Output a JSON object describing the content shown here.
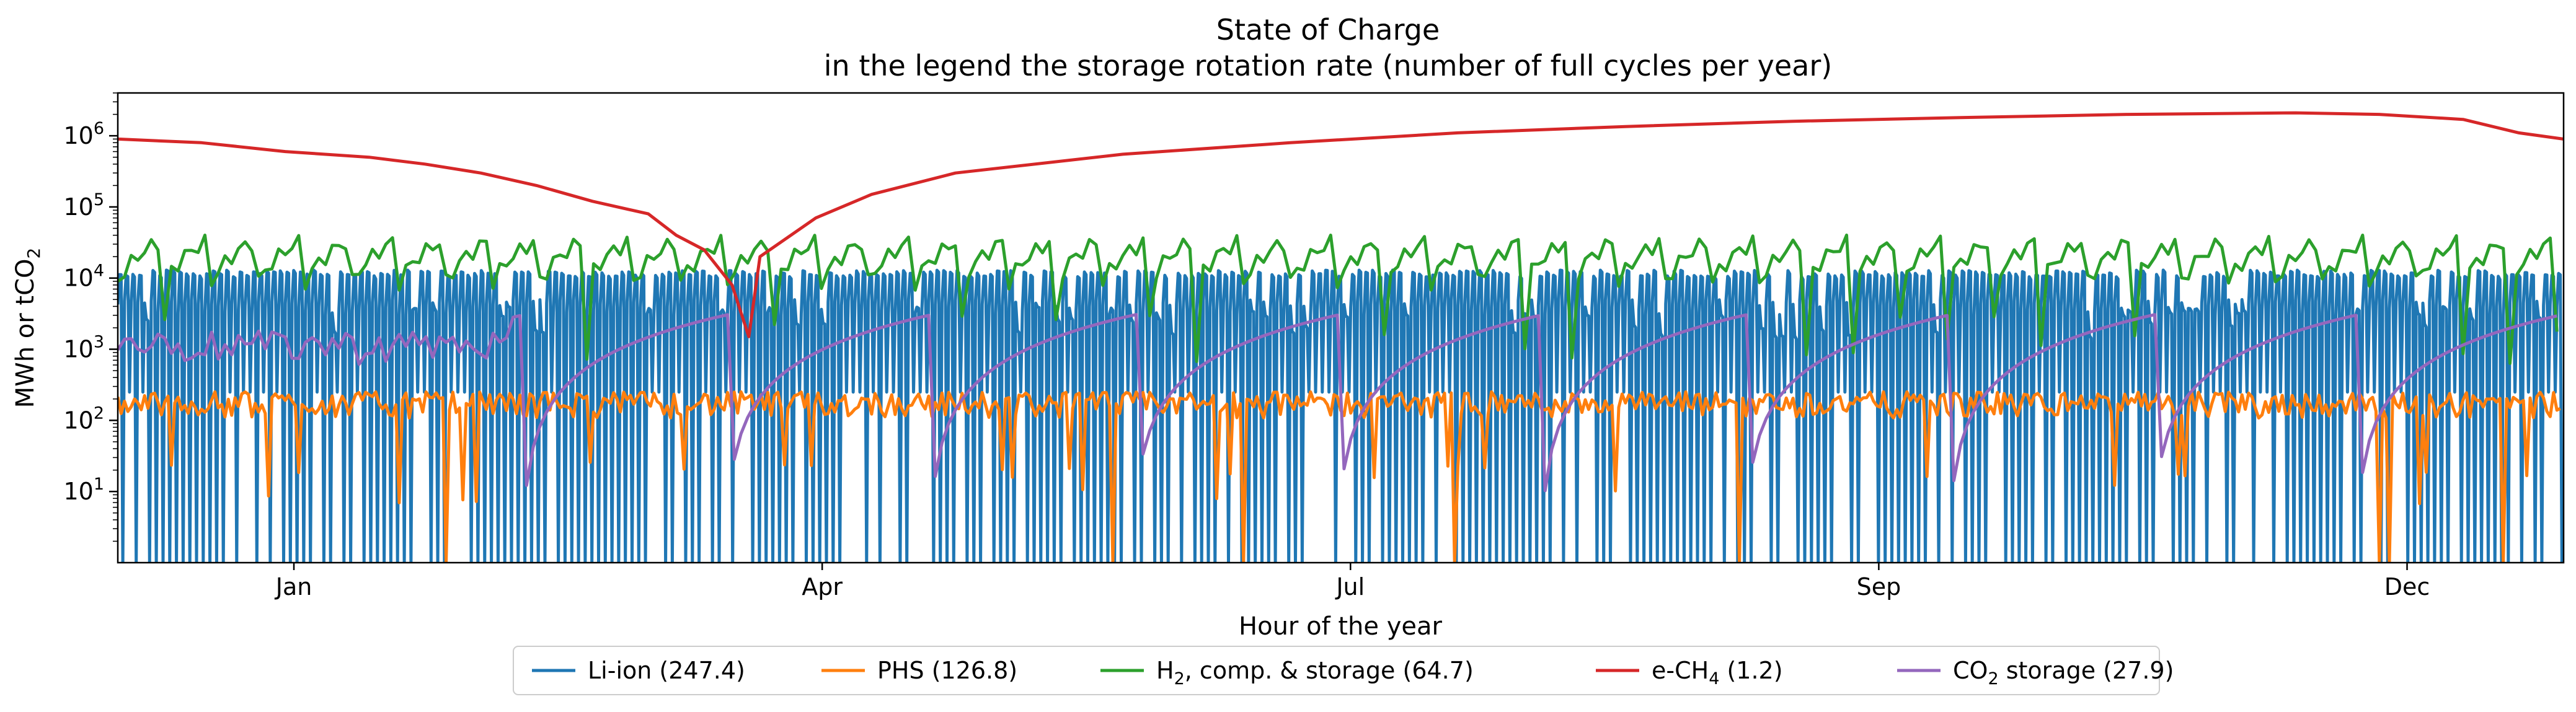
{
  "chart_data": {
    "type": "line",
    "title": "State of Charge",
    "subtitle": "in the legend the storage rotation rate (number of full cycles per year)",
    "xlabel": "Hour of the year",
    "ylabel_main": "MWh or tCO",
    "ylabel_sub": "2",
    "y_scale": "log",
    "ylim": [
      1,
      4000000
    ],
    "xlim": [
      0,
      8760
    ],
    "x_ticks": [
      {
        "label": "Jan",
        "value": 720
      },
      {
        "label": "Apr",
        "value": 2880
      },
      {
        "label": "Jul",
        "value": 5040
      },
      {
        "label": "Sep",
        "value": 7200
      },
      {
        "label": "Dec",
        "value": 9360
      }
    ],
    "y_ticks": [
      {
        "base": "10",
        "exp": "1",
        "value": 10
      },
      {
        "base": "10",
        "exp": "2",
        "value": 100
      },
      {
        "base": "10",
        "exp": "3",
        "value": 1000
      },
      {
        "base": "10",
        "exp": "4",
        "value": 10000
      },
      {
        "base": "10",
        "exp": "5",
        "value": 100000
      },
      {
        "base": "10",
        "exp": "6",
        "value": 1000000
      }
    ],
    "legend_position": "bottom-center",
    "series": [
      {
        "name": "Li-ion (247.4)",
        "color": "#1f77b4",
        "pattern": "daily-cycle",
        "high": 13000,
        "low": 1,
        "typical": 5000
      },
      {
        "name": "PHS (126.8)",
        "color": "#ff7f0e",
        "pattern": "noisy",
        "high": 300,
        "low": 20,
        "typical": 180
      },
      {
        "name": "H2, comp. & storage (64.7)",
        "color": "#2ca02c",
        "pattern": "weekly-sawtooth",
        "high": 45000,
        "low": 3000,
        "typical": 20000
      },
      {
        "name": "e-CH4 (1.2)",
        "color": "#d62728",
        "pattern": "seasonal",
        "points": [
          [
            0,
            900000
          ],
          [
            300,
            800000
          ],
          [
            600,
            600000
          ],
          [
            900,
            500000
          ],
          [
            1100,
            400000
          ],
          [
            1300,
            300000
          ],
          [
            1500,
            200000
          ],
          [
            1700,
            120000
          ],
          [
            1900,
            80000
          ],
          [
            2000,
            40000
          ],
          [
            2100,
            25000
          ],
          [
            2200,
            8000
          ],
          [
            2260,
            1500
          ],
          [
            2300,
            20000
          ],
          [
            2500,
            70000
          ],
          [
            2700,
            150000
          ],
          [
            3000,
            300000
          ],
          [
            3600,
            550000
          ],
          [
            4200,
            800000
          ],
          [
            4800,
            1100000
          ],
          [
            5400,
            1350000
          ],
          [
            6000,
            1600000
          ],
          [
            6600,
            1800000
          ],
          [
            7200,
            2000000
          ],
          [
            7800,
            2100000
          ],
          [
            8100,
            2000000
          ],
          [
            8400,
            1700000
          ],
          [
            8600,
            1100000
          ],
          [
            8760,
            900000
          ]
        ]
      },
      {
        "name": "CO2 storage (27.9)",
        "color": "#9467bd",
        "pattern": "monthly-ramps",
        "high": 3000,
        "low": 10,
        "typical": 1500
      }
    ],
    "legend_entries": [
      {
        "pre": "Li-ion (247.4)",
        "sub": "",
        "post": ""
      },
      {
        "pre": "PHS (126.8)",
        "sub": "",
        "post": ""
      },
      {
        "pre": "H",
        "sub": "2",
        "post": ", comp. & storage (64.7)"
      },
      {
        "pre": "e-CH",
        "sub": "4",
        "post": " (1.2)"
      },
      {
        "pre": "CO",
        "sub": "2",
        "post": " storage (27.9)"
      }
    ]
  }
}
